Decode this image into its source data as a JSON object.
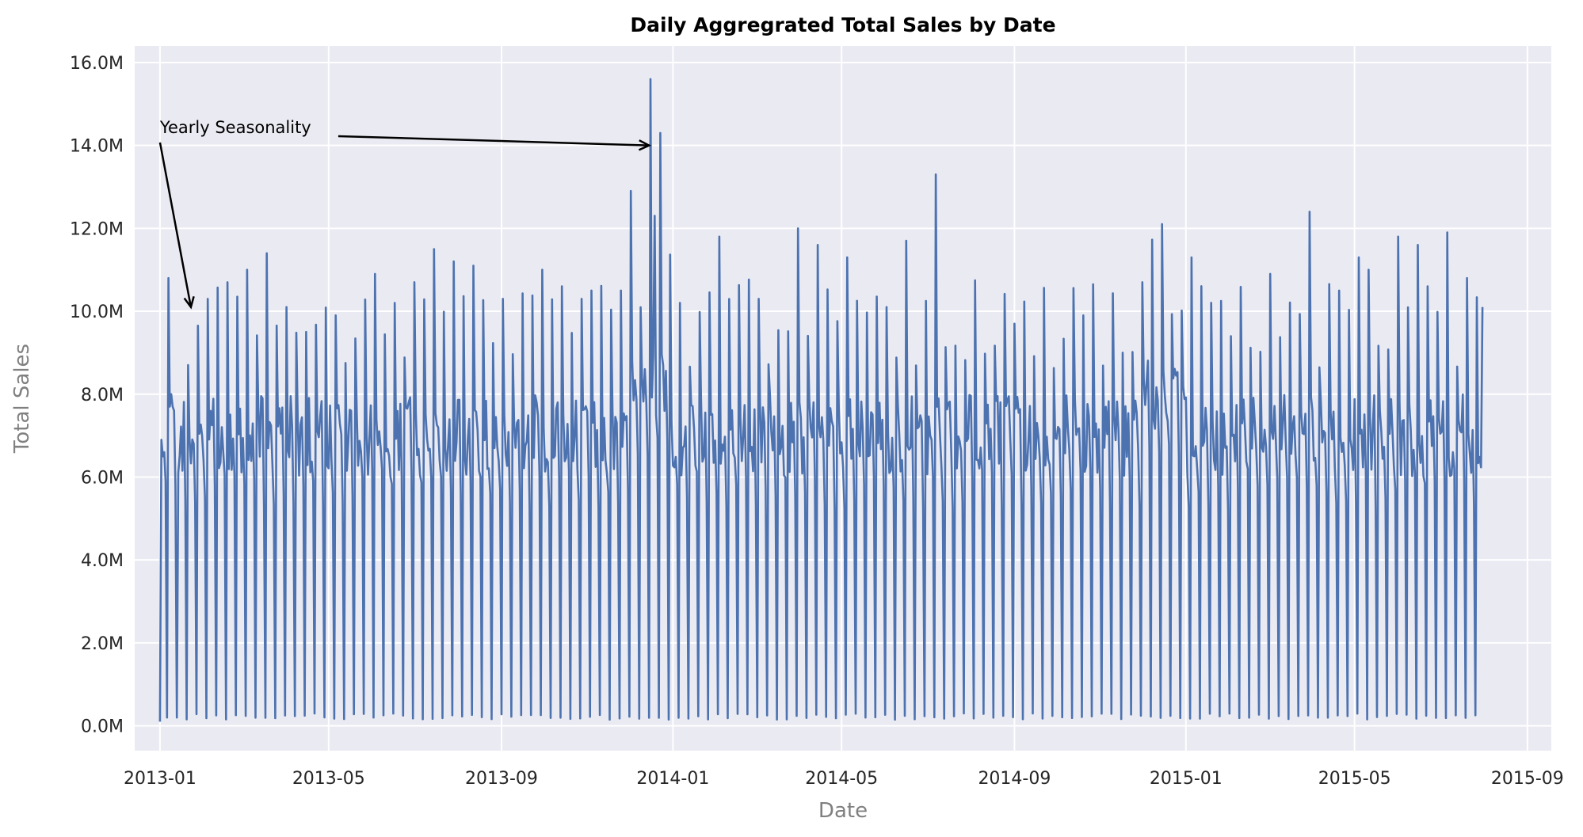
{
  "chart_data": {
    "type": "line",
    "title": "Daily Aggregrated Total Sales by Date",
    "xlabel": "Date",
    "ylabel": "Total Sales",
    "x_ticks": [
      "2013-01",
      "2013-05",
      "2013-09",
      "2014-01",
      "2014-05",
      "2014-09",
      "2015-01",
      "2015-05",
      "2015-09"
    ],
    "y_ticks": [
      "0.0M",
      "2.0M",
      "4.0M",
      "6.0M",
      "8.0M",
      "10.0M",
      "12.0M",
      "14.0M",
      "16.0M"
    ],
    "xlim": [
      "2012-12-14",
      "2015-09-18"
    ],
    "ylim": [
      -0.6,
      16.4
    ],
    "grid": true,
    "colors": {
      "series": "#4c72b0",
      "background": "#eaeaf2",
      "grid": "#ffffff"
    },
    "annotation": {
      "text": "Yearly Seasonality",
      "text_at": [
        "2013-01-01",
        14.3
      ],
      "arrows_to": [
        [
          "2013-01-23",
          10.1
        ],
        [
          "2013-12-15",
          14.0
        ]
      ]
    },
    "series": [
      {
        "date_range": [
          "2013-01-01",
          "2015-07-31"
        ],
        "approx_pattern": "weekly cycle: Sunday near zero (~0.2M), Monday peak ~8-11M, weekdays 6-8M, Saturday ~5.5M; December higher with peak 15.6M",
        "points": [
          [
            "2013-01-01",
            0.1
          ],
          [
            "2013-01-02",
            6.9
          ],
          [
            "2013-01-03",
            6.5
          ],
          [
            "2013-01-04",
            6.6
          ],
          [
            "2013-01-05",
            5.9
          ],
          [
            "2013-01-06",
            0.2
          ],
          [
            "2013-01-07",
            10.8
          ],
          [
            "2013-01-08",
            7.7
          ],
          [
            "2013-01-09",
            8.0
          ],
          [
            "2013-01-10",
            7.7
          ],
          [
            "2013-01-11",
            7.6
          ],
          [
            "2013-01-12",
            5.8
          ],
          [
            "2013-01-13",
            0.2
          ],
          [
            "2013-01-14",
            6.1
          ],
          [
            "2013-01-21",
            8.7
          ],
          [
            "2013-02-04",
            10.3
          ],
          [
            "2013-02-18",
            10.7
          ],
          [
            "2013-03-04",
            11.0
          ],
          [
            "2013-03-18",
            11.4
          ],
          [
            "2013-04-01",
            10.1
          ],
          [
            "2013-04-15",
            9.5
          ],
          [
            "2013-05-06",
            9.9
          ],
          [
            "2013-06-03",
            10.9
          ],
          [
            "2013-06-17",
            10.2
          ],
          [
            "2013-07-01",
            10.7
          ],
          [
            "2013-07-15",
            11.5
          ],
          [
            "2013-07-29",
            11.2
          ],
          [
            "2013-08-12",
            11.1
          ],
          [
            "2013-09-02",
            10.3
          ],
          [
            "2013-09-30",
            11.0
          ],
          [
            "2013-10-14",
            10.6
          ],
          [
            "2013-11-04",
            10.5
          ],
          [
            "2013-11-25",
            10.5
          ],
          [
            "2013-12-02",
            12.9
          ],
          [
            "2013-12-16",
            15.6
          ],
          [
            "2013-12-19",
            12.3
          ],
          [
            "2013-12-23",
            14.3
          ],
          [
            "2014-01-06",
            10.2
          ],
          [
            "2014-02-03",
            11.8
          ],
          [
            "2014-03-03",
            10.3
          ],
          [
            "2014-03-31",
            12.0
          ],
          [
            "2014-04-14",
            11.6
          ],
          [
            "2014-05-05",
            11.3
          ],
          [
            "2014-06-02",
            10.1
          ],
          [
            "2014-06-16",
            11.7
          ],
          [
            "2014-07-07",
            13.3
          ],
          [
            "2014-09-01",
            9.7
          ],
          [
            "2014-10-20",
            9.9
          ],
          [
            "2014-11-17",
            9.0
          ],
          [
            "2014-12-01",
            10.7
          ],
          [
            "2014-12-15",
            12.1
          ],
          [
            "2015-01-05",
            11.3
          ],
          [
            "2015-02-02",
            9.4
          ],
          [
            "2015-03-02",
            10.9
          ],
          [
            "2015-03-30",
            12.4
          ],
          [
            "2015-04-20",
            10.5
          ],
          [
            "2015-05-04",
            11.3
          ],
          [
            "2015-05-11",
            11.0
          ],
          [
            "2015-06-01",
            11.8
          ],
          [
            "2015-06-15",
            11.6
          ],
          [
            "2015-07-06",
            11.9
          ],
          [
            "2015-07-20",
            10.8
          ],
          [
            "2015-07-31",
            10.1
          ]
        ]
      }
    ]
  }
}
